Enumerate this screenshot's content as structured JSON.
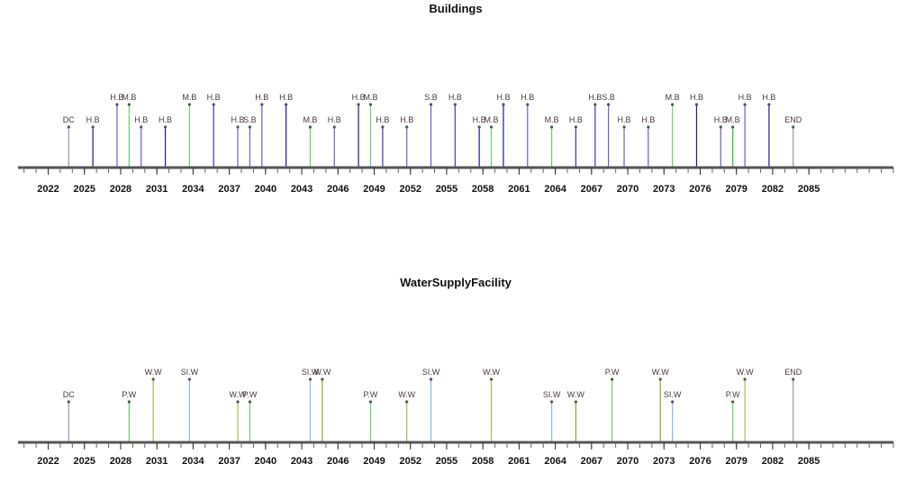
{
  "chart_data": [
    {
      "type": "timeline",
      "title": "Buildings",
      "xlim": [
        2019.5,
        2092
      ],
      "x_ticks": [
        2022,
        2025,
        2028,
        2031,
        2034,
        2037,
        2040,
        2043,
        2046,
        2049,
        2052,
        2055,
        2058,
        2061,
        2064,
        2067,
        2070,
        2073,
        2076,
        2079,
        2082,
        2085
      ],
      "events": [
        {
          "x": 2023.7,
          "label": "DC",
          "level": 1,
          "color": "#9a9acb"
        },
        {
          "x": 2025.7,
          "label": "H.B",
          "level": 1,
          "color": "#1a1a9e"
        },
        {
          "x": 2027.7,
          "label": "H.B",
          "level": 2,
          "color": "#6b5fcf"
        },
        {
          "x": 2028.7,
          "label": "M.B",
          "level": 2,
          "color": "#6ad06a"
        },
        {
          "x": 2029.7,
          "label": "H.B",
          "level": 1,
          "color": "#6b5fcf"
        },
        {
          "x": 2031.7,
          "label": "H.B",
          "level": 1,
          "color": "#1a1a9e"
        },
        {
          "x": 2033.7,
          "label": "M.B",
          "level": 2,
          "color": "#6ad06a"
        },
        {
          "x": 2035.7,
          "label": "H.B",
          "level": 2,
          "color": "#3a3ac0"
        },
        {
          "x": 2037.7,
          "label": "H.B",
          "level": 1,
          "color": "#6b5fcf"
        },
        {
          "x": 2038.7,
          "label": "S.B",
          "level": 1,
          "color": "#6b5fcf"
        },
        {
          "x": 2039.7,
          "label": "H.B",
          "level": 2,
          "color": "#6b5fcf"
        },
        {
          "x": 2041.7,
          "label": "H.B",
          "level": 2,
          "color": "#1a1a9e"
        },
        {
          "x": 2043.7,
          "label": "M.B",
          "level": 1,
          "color": "#6ad06a"
        },
        {
          "x": 2045.7,
          "label": "H.B",
          "level": 1,
          "color": "#6b5fcf"
        },
        {
          "x": 2047.7,
          "label": "H.B",
          "level": 2,
          "color": "#1a1a9e"
        },
        {
          "x": 2048.7,
          "label": "M.B",
          "level": 2,
          "color": "#6ad06a"
        },
        {
          "x": 2049.7,
          "label": "H.B",
          "level": 1,
          "color": "#3a3ac0"
        },
        {
          "x": 2051.7,
          "label": "H.B",
          "level": 1,
          "color": "#6b5fcf"
        },
        {
          "x": 2053.7,
          "label": "S.B",
          "level": 2,
          "color": "#6b5fcf"
        },
        {
          "x": 2055.7,
          "label": "H.B",
          "level": 2,
          "color": "#3a3ac0"
        },
        {
          "x": 2057.7,
          "label": "H.B",
          "level": 1,
          "color": "#1a1a9e"
        },
        {
          "x": 2058.7,
          "label": "M.B",
          "level": 1,
          "color": "#6ad06a"
        },
        {
          "x": 2059.7,
          "label": "H.B",
          "level": 2,
          "color": "#1a1a9e"
        },
        {
          "x": 2061.7,
          "label": "H.B",
          "level": 2,
          "color": "#6b5fcf"
        },
        {
          "x": 2063.7,
          "label": "M.B",
          "level": 1,
          "color": "#6ad06a"
        },
        {
          "x": 2065.7,
          "label": "H.B",
          "level": 1,
          "color": "#3a3ac0"
        },
        {
          "x": 2067.3,
          "label": "H.B",
          "level": 2,
          "color": "#3a3ac0"
        },
        {
          "x": 2068.4,
          "label": "S.B",
          "level": 2,
          "color": "#6b5fcf"
        },
        {
          "x": 2069.7,
          "label": "H.B",
          "level": 1,
          "color": "#6b5fcf"
        },
        {
          "x": 2071.7,
          "label": "H.B",
          "level": 1,
          "color": "#6b5fcf"
        },
        {
          "x": 2073.7,
          "label": "M.B",
          "level": 2,
          "color": "#6ad06a"
        },
        {
          "x": 2075.7,
          "label": "H.B",
          "level": 2,
          "color": "#1a1a9e"
        },
        {
          "x": 2077.7,
          "label": "H.B",
          "level": 1,
          "color": "#6b5fcf"
        },
        {
          "x": 2078.7,
          "label": "M.B",
          "level": 1,
          "color": "#2eb82e"
        },
        {
          "x": 2079.7,
          "label": "H.B",
          "level": 2,
          "color": "#6b5fcf"
        },
        {
          "x": 2081.7,
          "label": "H.B",
          "level": 2,
          "color": "#1a1a9e"
        },
        {
          "x": 2083.7,
          "label": "END",
          "level": 1,
          "color": "#9a9a9a"
        }
      ]
    },
    {
      "type": "timeline",
      "title": "WaterSupplyFacility",
      "xlim": [
        2019.5,
        2092
      ],
      "x_ticks": [
        2022,
        2025,
        2028,
        2031,
        2034,
        2037,
        2040,
        2043,
        2046,
        2049,
        2052,
        2055,
        2058,
        2061,
        2064,
        2067,
        2070,
        2073,
        2076,
        2079,
        2082,
        2085
      ],
      "events": [
        {
          "x": 2023.7,
          "label": "DC",
          "level": 1,
          "color": "#9a9acb"
        },
        {
          "x": 2028.7,
          "label": "P.W",
          "level": 1,
          "color": "#6ad06a"
        },
        {
          "x": 2030.7,
          "label": "W.W",
          "level": 2,
          "color": "#a0c060"
        },
        {
          "x": 2033.7,
          "label": "SI.W",
          "level": 2,
          "color": "#88b8e8"
        },
        {
          "x": 2037.7,
          "label": "W.W",
          "level": 1,
          "color": "#a0c060"
        },
        {
          "x": 2038.7,
          "label": "P.W",
          "level": 1,
          "color": "#6ad06a"
        },
        {
          "x": 2043.7,
          "label": "SI.W",
          "level": 2,
          "color": "#88b8e8"
        },
        {
          "x": 2044.7,
          "label": "W.W",
          "level": 2,
          "color": "#9a9a30"
        },
        {
          "x": 2048.7,
          "label": "P.W",
          "level": 1,
          "color": "#6ad06a"
        },
        {
          "x": 2051.7,
          "label": "W.W",
          "level": 1,
          "color": "#a0c060"
        },
        {
          "x": 2053.7,
          "label": "SI.W",
          "level": 2,
          "color": "#88b8e8"
        },
        {
          "x": 2058.7,
          "label": "W.W",
          "level": 2,
          "color": "#a0c060"
        },
        {
          "x": 2063.7,
          "label": "SI.W",
          "level": 1,
          "color": "#88b8e8"
        },
        {
          "x": 2065.7,
          "label": "W.W",
          "level": 1,
          "color": "#9a9a30"
        },
        {
          "x": 2068.7,
          "label": "P.W",
          "level": 2,
          "color": "#6ad06a"
        },
        {
          "x": 2072.7,
          "label": "W.W",
          "level": 2,
          "color": "#9a9a30"
        },
        {
          "x": 2073.7,
          "label": "SI.W",
          "level": 1,
          "color": "#88b8e8"
        },
        {
          "x": 2078.7,
          "label": "P.W",
          "level": 1,
          "color": "#6ad06a"
        },
        {
          "x": 2079.7,
          "label": "W.W",
          "level": 2,
          "color": "#a0c060"
        },
        {
          "x": 2083.7,
          "label": "END",
          "level": 2,
          "color": "#9a9a9a"
        }
      ]
    }
  ]
}
